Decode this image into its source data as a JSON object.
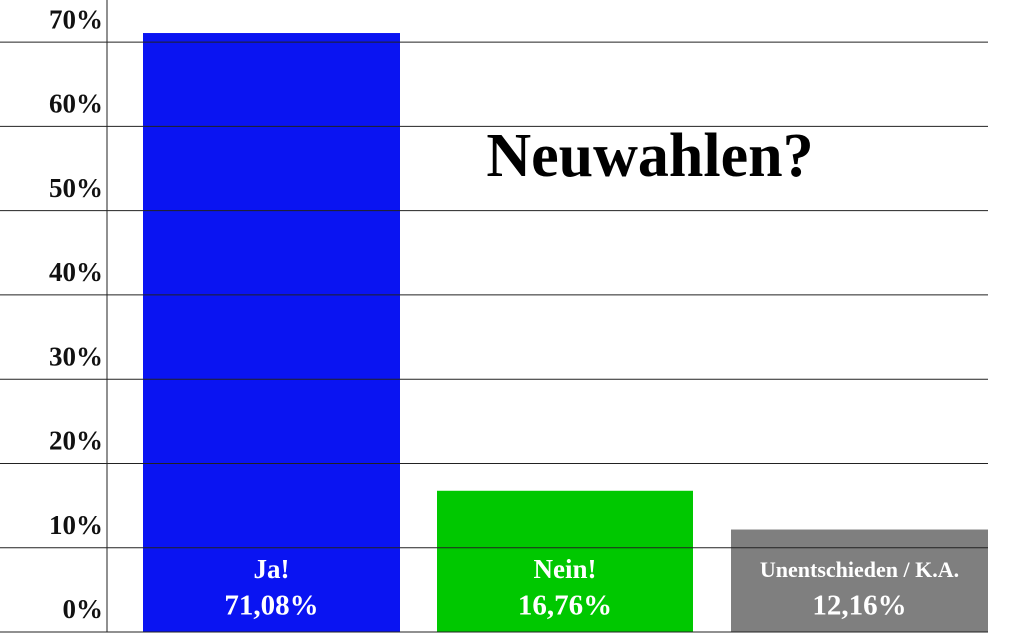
{
  "chart_data": {
    "type": "bar",
    "title": "Neuwahlen?",
    "categories": [
      "Ja!",
      "Nein!",
      "Unentschieden / K.A."
    ],
    "values": [
      71.08,
      16.76,
      12.16
    ],
    "value_labels": [
      "71,08%",
      "16,76%",
      "12,16%"
    ],
    "colors": [
      "#0a14f2",
      "#00c800",
      "#7f7f7f"
    ],
    "ylim": [
      0,
      75
    ],
    "yticks": [
      {
        "value": 0,
        "label": "0%"
      },
      {
        "value": 10,
        "label": "10%"
      },
      {
        "value": 20,
        "label": "20%"
      },
      {
        "value": 30,
        "label": "30%"
      },
      {
        "value": 40,
        "label": "40%"
      },
      {
        "value": 50,
        "label": "50%"
      },
      {
        "value": 60,
        "label": "60%"
      },
      {
        "value": 70,
        "label": "70%"
      }
    ],
    "grid": true
  }
}
